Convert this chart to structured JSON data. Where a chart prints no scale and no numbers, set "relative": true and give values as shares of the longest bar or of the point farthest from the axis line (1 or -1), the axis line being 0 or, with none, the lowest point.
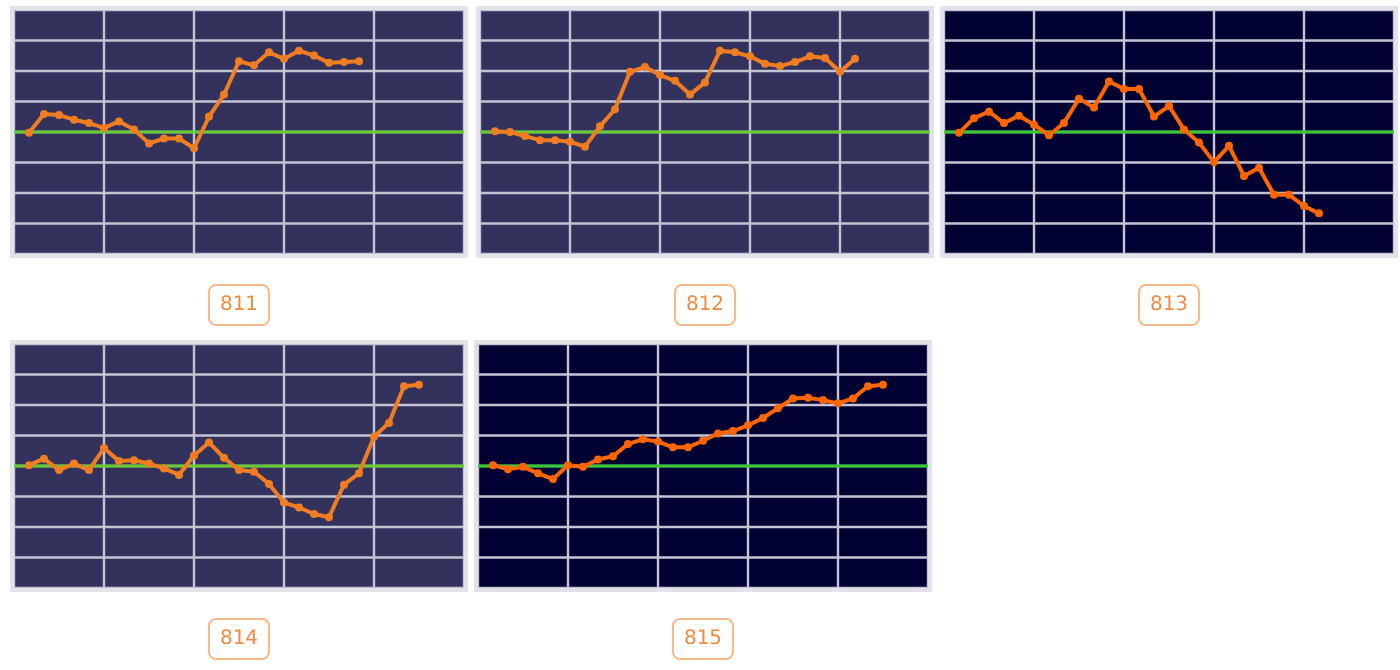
{
  "chart_data": [
    {
      "type": "line",
      "title": "811",
      "relative": true,
      "grid": true,
      "tick_labels": false,
      "marker": "circle",
      "line_style": "solid",
      "categories": [
        null,
        null,
        null,
        null,
        null,
        null,
        null,
        null,
        null,
        null,
        null,
        null,
        null,
        null,
        null,
        null,
        null,
        null,
        null,
        null,
        null,
        null,
        null,
        null,
        null,
        null,
        null,
        null,
        null,
        null,
        null
      ],
      "series": [
        {
          "color": "#f07d22",
          "values": [
            null,
            -0.01,
            0.22,
            0.21,
            0.15,
            0.11,
            0.05,
            0.13,
            0.03,
            -0.14,
            -0.08,
            -0.08,
            -0.2,
            0.19,
            0.46,
            0.87,
            0.82,
            0.98,
            0.9,
            1,
            0.94,
            0.85,
            0.86,
            0.87,
            null,
            null,
            null,
            null,
            null,
            null,
            null
          ]
        }
      ],
      "ref_lines": [
        {
          "axis": "y",
          "value": 0,
          "color": "#66cc33"
        }
      ]
    },
    {
      "type": "line",
      "title": "812",
      "relative": true,
      "grid": true,
      "tick_labels": false,
      "marker": "circle",
      "line_style": "solid",
      "categories": [
        null,
        null,
        null,
        null,
        null,
        null,
        null,
        null,
        null,
        null,
        null,
        null,
        null,
        null,
        null,
        null,
        null,
        null,
        null,
        null,
        null,
        null,
        null,
        null,
        null,
        null,
        null,
        null,
        null,
        null,
        null
      ],
      "series": [
        {
          "color": "#f07d22",
          "values": [
            null,
            0.01,
            0,
            -0.05,
            -0.1,
            -0.1,
            -0.12,
            -0.18,
            0.07,
            0.28,
            0.74,
            0.8,
            0.7,
            0.63,
            0.46,
            0.61,
            1,
            0.98,
            0.93,
            0.84,
            0.81,
            0.86,
            0.93,
            0.91,
            0.74,
            0.9,
            null,
            null,
            null,
            null,
            null
          ]
        }
      ],
      "ref_lines": [
        {
          "axis": "y",
          "value": 0,
          "color": "#66cc33"
        }
      ]
    },
    {
      "type": "line",
      "title": "813",
      "relative": true,
      "grid": true,
      "tick_labels": false,
      "marker": "circle",
      "line_style": "solid",
      "categories": [
        null,
        null,
        null,
        null,
        null,
        null,
        null,
        null,
        null,
        null,
        null,
        null,
        null,
        null,
        null,
        null,
        null,
        null,
        null,
        null,
        null,
        null,
        null,
        null,
        null,
        null,
        null,
        null,
        null,
        null,
        null
      ],
      "series": [
        {
          "color": "#ff6600",
          "values": [
            null,
            -0.01,
            0.17,
            0.25,
            0.11,
            0.2,
            0.09,
            -0.04,
            0.11,
            0.41,
            0.3,
            0.62,
            0.53,
            0.53,
            0.19,
            0.32,
            0.03,
            -0.13,
            -0.37,
            -0.17,
            -0.54,
            -0.44,
            -0.77,
            -0.77,
            -0.91,
            -1,
            null,
            null,
            null,
            null,
            null
          ]
        }
      ],
      "ref_lines": [
        {
          "axis": "y",
          "value": 0,
          "color": "#33cc33"
        }
      ]
    },
    {
      "type": "line",
      "title": "814",
      "relative": true,
      "grid": true,
      "tick_labels": false,
      "marker": "circle",
      "line_style": "solid",
      "categories": [
        null,
        null,
        null,
        null,
        null,
        null,
        null,
        null,
        null,
        null,
        null,
        null,
        null,
        null,
        null,
        null,
        null,
        null,
        null,
        null,
        null,
        null,
        null,
        null,
        null,
        null,
        null,
        null,
        null,
        null,
        null
      ],
      "series": [
        {
          "color": "#f07d22",
          "values": [
            null,
            0.01,
            0.09,
            -0.05,
            0.03,
            -0.05,
            0.22,
            0.06,
            0.07,
            0.03,
            -0.03,
            -0.11,
            0.13,
            0.29,
            0.1,
            -0.05,
            -0.07,
            -0.22,
            -0.45,
            -0.51,
            -0.59,
            -0.63,
            -0.23,
            -0.09,
            0.36,
            0.53,
            0.98,
            1,
            null,
            null,
            null
          ]
        }
      ],
      "ref_lines": [
        {
          "axis": "y",
          "value": 0,
          "color": "#66cc33"
        }
      ]
    },
    {
      "type": "line",
      "title": "815",
      "relative": true,
      "grid": true,
      "tick_labels": false,
      "marker": "circle",
      "line_style": "solid",
      "categories": [
        null,
        null,
        null,
        null,
        null,
        null,
        null,
        null,
        null,
        null,
        null,
        null,
        null,
        null,
        null,
        null,
        null,
        null,
        null,
        null,
        null,
        null,
        null,
        null,
        null,
        null,
        null,
        null,
        null,
        null,
        null
      ],
      "series": [
        {
          "color": "#ff6600",
          "values": [
            null,
            0.01,
            -0.04,
            -0.01,
            -0.09,
            -0.16,
            0.01,
            -0.01,
            0.08,
            0.12,
            0.27,
            0.33,
            0.3,
            0.23,
            0.23,
            0.31,
            0.4,
            0.43,
            0.5,
            0.59,
            0.71,
            0.83,
            0.84,
            0.81,
            0.77,
            0.83,
            0.98,
            1,
            null,
            null,
            null
          ]
        }
      ],
      "ref_lines": [
        {
          "axis": "y",
          "value": 0,
          "color": "#33cc33"
        }
      ]
    }
  ]
}
